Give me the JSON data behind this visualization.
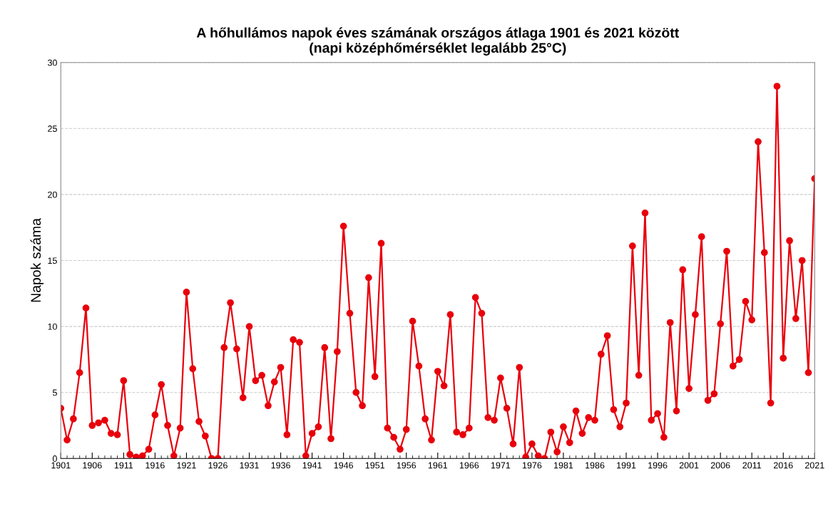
{
  "chart_data": {
    "type": "line",
    "title": "A hőhullámos napok éves számának országos átlaga 1901 és 2021 között\n(napi középhőmérséklet legalább 25°C)",
    "ylabel": "Napok száma",
    "x": [
      1901,
      1902,
      1903,
      1904,
      1905,
      1906,
      1907,
      1908,
      1909,
      1910,
      1911,
      1912,
      1913,
      1914,
      1915,
      1916,
      1917,
      1918,
      1919,
      1920,
      1921,
      1922,
      1923,
      1924,
      1925,
      1926,
      1927,
      1928,
      1929,
      1930,
      1931,
      1932,
      1933,
      1934,
      1935,
      1936,
      1937,
      1938,
      1939,
      1940,
      1941,
      1942,
      1943,
      1944,
      1945,
      1946,
      1947,
      1948,
      1949,
      1950,
      1951,
      1952,
      1953,
      1954,
      1955,
      1956,
      1957,
      1958,
      1959,
      1960,
      1961,
      1962,
      1963,
      1964,
      1965,
      1966,
      1967,
      1968,
      1969,
      1970,
      1971,
      1972,
      1973,
      1974,
      1975,
      1976,
      1977,
      1978,
      1979,
      1980,
      1981,
      1982,
      1983,
      1984,
      1985,
      1986,
      1987,
      1988,
      1989,
      1990,
      1991,
      1992,
      1993,
      1994,
      1995,
      1996,
      1997,
      1998,
      1999,
      2000,
      2001,
      2002,
      2003,
      2004,
      2005,
      2006,
      2007,
      2008,
      2009,
      2010,
      2011,
      2012,
      2013,
      2014,
      2015,
      2016,
      2017,
      2018,
      2019,
      2020,
      2021
    ],
    "series": [
      {
        "color": "#e8000b",
        "values": [
          3.8,
          1.4,
          3.0,
          6.5,
          11.4,
          2.5,
          2.7,
          2.9,
          1.9,
          1.8,
          5.9,
          0.3,
          0.1,
          0.2,
          0.7,
          3.3,
          5.6,
          2.5,
          0.2,
          2.3,
          12.6,
          6.8,
          2.8,
          1.7,
          0.0,
          0.0,
          8.4,
          11.8,
          8.3,
          4.6,
          10.0,
          5.9,
          6.3,
          4.0,
          5.8,
          6.9,
          1.8,
          9.0,
          8.8,
          0.2,
          1.9,
          2.4,
          8.4,
          1.5,
          8.1,
          17.6,
          11.0,
          5.0,
          4.0,
          13.7,
          6.2,
          16.3,
          2.3,
          1.6,
          0.7,
          2.2,
          10.4,
          7.0,
          3.0,
          1.4,
          6.6,
          5.5,
          10.9,
          2.0,
          1.8,
          2.3,
          12.2,
          11.0,
          3.1,
          2.9,
          6.1,
          3.8,
          1.1,
          6.9,
          0.1,
          1.1,
          0.2,
          0.0,
          2.0,
          0.5,
          2.4,
          1.2,
          3.6,
          1.9,
          3.1,
          2.9,
          7.9,
          9.3,
          3.7,
          2.4,
          4.2,
          16.1,
          6.3,
          18.6,
          2.9,
          3.4,
          1.6,
          10.3,
          3.6,
          14.3,
          5.3,
          10.9,
          16.8,
          4.4,
          4.9,
          10.2,
          15.7,
          7.0,
          7.5,
          11.9,
          10.5,
          24.0,
          15.6,
          4.2,
          28.2,
          7.6,
          16.5,
          10.6,
          15.0,
          6.5,
          21.2
        ]
      }
    ],
    "xlim": [
      1901,
      2021
    ],
    "xticks": [
      1901,
      1906,
      1911,
      1916,
      1921,
      1926,
      1931,
      1936,
      1941,
      1946,
      1951,
      1956,
      1961,
      1966,
      1971,
      1976,
      1981,
      1986,
      1991,
      1996,
      2001,
      2006,
      2011,
      2016,
      2021
    ],
    "ylim": [
      0,
      30
    ],
    "yticks": [
      0,
      5,
      10,
      15,
      20,
      25,
      30
    ],
    "grid": "y",
    "marker": "circle",
    "line_style": "solid"
  }
}
